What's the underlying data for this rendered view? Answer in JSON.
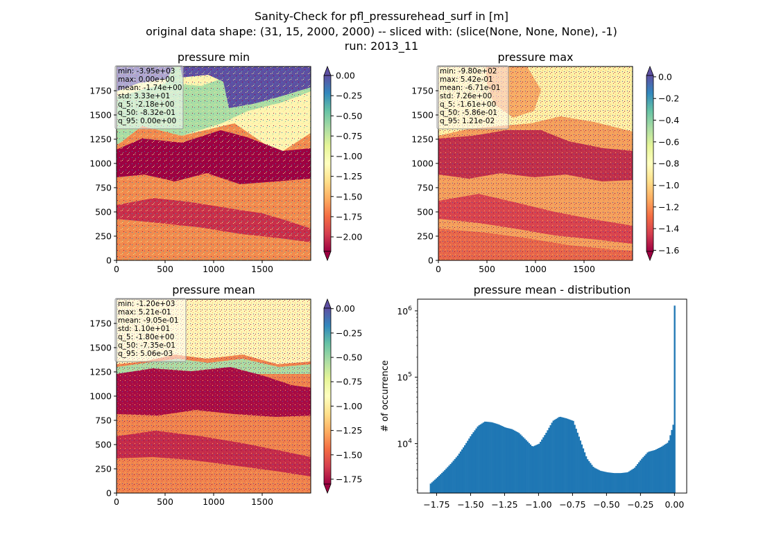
{
  "figure": {
    "suptitle": [
      "Sanity-Check for pfl_pressurehead_surf in [m]",
      "original data shape: (31, 15, 2000, 2000) -- sliced with: (slice(None, None, None), -1)",
      "run: 2013_11"
    ]
  },
  "chart_data": [
    {
      "type": "heatmap",
      "title": "pressure min",
      "x_ticks": [
        0,
        500,
        1000,
        1500
      ],
      "y_ticks": [
        0,
        250,
        500,
        750,
        1000,
        1250,
        1500,
        1750
      ],
      "xlim": [
        0,
        2000
      ],
      "ylim": [
        0,
        2000
      ],
      "colormap": "Spectral",
      "colorbar": {
        "range": [
          -2.18,
          0.0
        ],
        "ticks": [
          0.0,
          -0.25,
          -0.5,
          -0.75,
          -1.0,
          -1.25,
          -1.5,
          -1.75,
          -2.0
        ],
        "tick_labels": [
          "0.00",
          "−0.25",
          "−0.50",
          "−0.75",
          "−1.00",
          "−1.25",
          "−1.50",
          "−1.75",
          "−2.00"
        ],
        "extend": "both"
      },
      "stats": [
        "min: -3.95e+03",
        "max: 0.00e+00",
        "mean: -1.74e+00",
        "std: 3.33e+01",
        "q_5: -2.18e+00",
        "q_50: -8.32e-01",
        "q_95: 0.00e+00"
      ]
    },
    {
      "type": "heatmap",
      "title": "pressure max",
      "x_ticks": [
        0,
        500,
        1000,
        1500
      ],
      "y_ticks": [
        0,
        250,
        500,
        750,
        1000,
        1250,
        1500,
        1750
      ],
      "xlim": [
        0,
        2000
      ],
      "ylim": [
        0,
        2000
      ],
      "colormap": "Spectral",
      "colorbar": {
        "range": [
          -1.61,
          0.0121
        ],
        "ticks": [
          0.0,
          -0.2,
          -0.4,
          -0.6,
          -0.8,
          -1.0,
          -1.2,
          -1.4,
          -1.6
        ],
        "tick_labels": [
          "0.0",
          "−0.2",
          "−0.4",
          "−0.6",
          "−0.8",
          "−1.0",
          "−1.2",
          "−1.4",
          "−1.6"
        ],
        "extend": "both"
      },
      "stats": [
        "min: -9.80e+02",
        "max: 5.42e-01",
        "mean: -6.71e-01",
        "std: 7.26e+00",
        "q_5: -1.61e+00",
        "q_50: -5.86e-01",
        "q_95: 1.21e-02"
      ]
    },
    {
      "type": "heatmap",
      "title": "pressure mean",
      "x_ticks": [
        0,
        500,
        1000,
        1500
      ],
      "y_ticks": [
        0,
        250,
        500,
        750,
        1000,
        1250,
        1500,
        1750
      ],
      "xlim": [
        0,
        2000
      ],
      "ylim": [
        0,
        2000
      ],
      "colormap": "Spectral",
      "colorbar": {
        "range": [
          -1.8,
          0.00506
        ],
        "ticks": [
          0.0,
          -0.25,
          -0.5,
          -0.75,
          -1.0,
          -1.25,
          -1.5,
          -1.75
        ],
        "tick_labels": [
          "0.00",
          "−0.25",
          "−0.50",
          "−0.75",
          "−1.00",
          "−1.25",
          "−1.50",
          "−1.75"
        ],
        "extend": "both"
      },
      "stats": [
        "min: -1.20e+03",
        "max: 5.21e-01",
        "mean: -9.05e-01",
        "std: 1.10e+01",
        "q_5: -1.80e+00",
        "q_50: -7.35e-01",
        "q_95: 5.06e-03"
      ]
    },
    {
      "type": "bar",
      "title": "pressure mean - distribution",
      "xlabel": "",
      "ylabel": "# of occurrence",
      "y_scale": "log",
      "color": "#1f77b4",
      "xlim": [
        -1.89,
        0.09
      ],
      "ylim": [
        1800,
        1500000
      ],
      "x_ticks": [
        -1.75,
        -1.5,
        -1.25,
        -1.0,
        -0.75,
        -0.5,
        -0.25,
        0.0
      ],
      "x_tick_labels": [
        "−1.75",
        "−1.50",
        "−1.25",
        "−1.00",
        "−0.75",
        "−0.50",
        "−0.25",
        "0.00"
      ],
      "y_ticks": [
        10000,
        100000,
        1000000
      ],
      "y_tick_labels": [
        "10^4",
        "10^5",
        "10^6"
      ],
      "bins": {
        "x": [
          -1.8,
          -1.75,
          -1.7,
          -1.65,
          -1.6,
          -1.55,
          -1.5,
          -1.45,
          -1.4,
          -1.35,
          -1.3,
          -1.25,
          -1.2,
          -1.15,
          -1.1,
          -1.05,
          -1.0,
          -0.95,
          -0.9,
          -0.85,
          -0.8,
          -0.75,
          -0.7,
          -0.65,
          -0.6,
          -0.55,
          -0.5,
          -0.45,
          -0.4,
          -0.35,
          -0.3,
          -0.25,
          -0.2,
          -0.15,
          -0.1,
          -0.05,
          -0.01,
          0.0
        ],
        "counts": [
          2500,
          3100,
          3900,
          5000,
          6600,
          9300,
          13500,
          18500,
          21500,
          21000,
          19500,
          17500,
          16500,
          14500,
          11500,
          9000,
          10000,
          14500,
          22000,
          25500,
          24000,
          22000,
          11500,
          6000,
          4400,
          3900,
          3700,
          3600,
          3600,
          3700,
          4300,
          5800,
          7500,
          8000,
          9000,
          10500,
          21000,
          1200000
        ]
      }
    }
  ]
}
